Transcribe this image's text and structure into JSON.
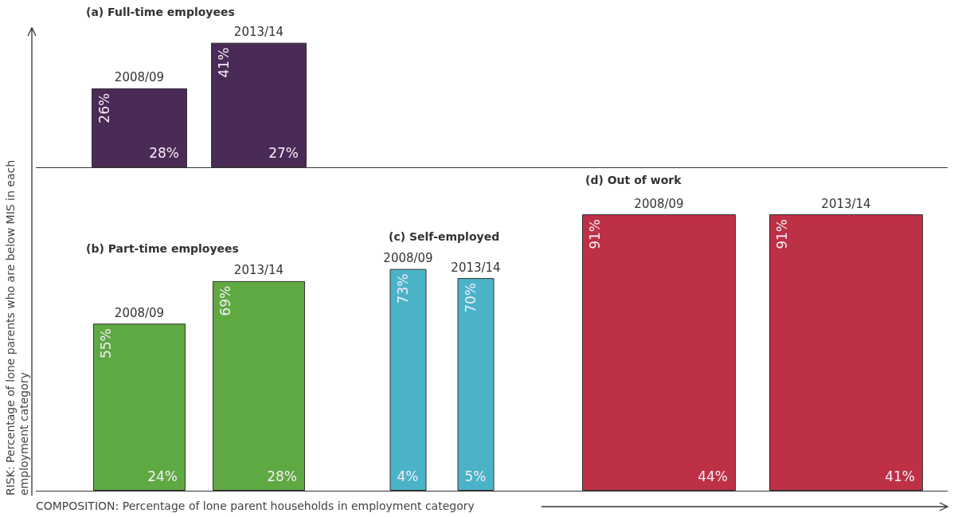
{
  "chart_data": [
    {
      "type": "bar",
      "title": "(a) Full-time employees",
      "ylabel": "RISK: Percentage of lone parents who are below MIS in each employment category",
      "xlabel": "COMPOSITION: Percentage of lone parent households in employment category",
      "categories": [
        "2008/09",
        "2013/14"
      ],
      "values": [
        26,
        41
      ],
      "value_labels": [
        "26%",
        "41%"
      ],
      "color": "#4a2a56",
      "annotations": [
        {
          "text": "28%",
          "x": "2008/09",
          "y": 0
        },
        {
          "text": "27%",
          "x": "2013/14",
          "y": 0
        }
      ]
    },
    {
      "type": "bar",
      "title": "(b) Part-time employees",
      "categories": [
        "2008/09",
        "2013/14"
      ],
      "values": [
        55,
        69
      ],
      "value_labels": [
        "55%",
        "69%"
      ],
      "color": "#5fa942",
      "annotations": [
        {
          "text": "24%",
          "x": "2008/09",
          "y": 0
        },
        {
          "text": "28%",
          "x": "2013/14",
          "y": 0
        }
      ]
    },
    {
      "type": "bar",
      "title": "(c) Self-employed",
      "categories": [
        "2008/09",
        "2013/14"
      ],
      "values": [
        73,
        70
      ],
      "value_labels": [
        "73%",
        "70%"
      ],
      "color": "#4bb3c8",
      "annotations": [
        {
          "text": "4%",
          "x": "2008/09",
          "y": 0
        },
        {
          "text": "5%",
          "x": "2013/14",
          "y": 0
        }
      ]
    },
    {
      "type": "bar",
      "title": "(d) Out of work",
      "categories": [
        "2008/09",
        "2013/14"
      ],
      "values": [
        91,
        91
      ],
      "value_labels": [
        "91%",
        "91%"
      ],
      "color": "#bd3046",
      "annotations": [
        {
          "text": "44%",
          "x": "2008/09",
          "y": 0
        },
        {
          "text": "41%",
          "x": "2013/14",
          "y": 0
        }
      ]
    }
  ]
}
